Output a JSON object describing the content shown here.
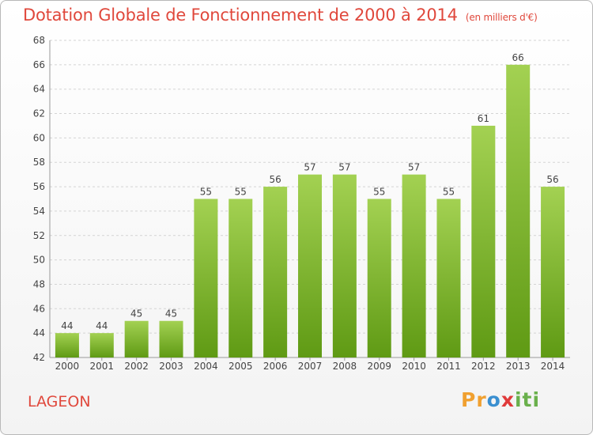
{
  "chart_data": {
    "type": "bar",
    "title": "Dotation Globale de Fonctionnement de 2000 à 2014",
    "subtitle": "(en milliers d'€)",
    "categories": [
      "2000",
      "2001",
      "2002",
      "2003",
      "2004",
      "2005",
      "2006",
      "2007",
      "2008",
      "2009",
      "2010",
      "2011",
      "2012",
      "2013",
      "2014"
    ],
    "values": [
      44,
      44,
      45,
      45,
      55,
      55,
      56,
      57,
      57,
      55,
      57,
      55,
      61,
      66,
      56
    ],
    "ylim": [
      42,
      68
    ],
    "yticks": [
      42,
      44,
      46,
      48,
      50,
      52,
      54,
      56,
      58,
      60,
      62,
      64,
      66,
      68
    ],
    "grid": true,
    "xlabel": "",
    "ylabel": "",
    "bar_color": "#7cbb2c"
  },
  "footer": {
    "commune": "LAGEON",
    "logo": "Proxiti"
  }
}
